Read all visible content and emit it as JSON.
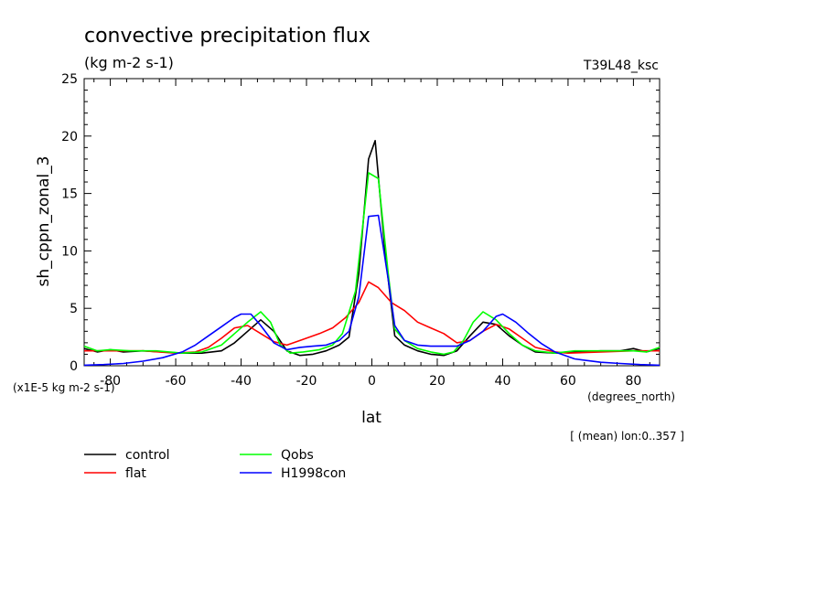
{
  "chart_data": {
    "type": "line",
    "title": "convective precipitation flux",
    "subtitle": "(kg m-2 s-1)",
    "run_label": "T39L48_ksc",
    "ylabel": "sh_cppn_zonal_3",
    "xlabel": "lat",
    "xunits": "(degrees_north)",
    "yunits": "(x1E-5 kg m-2 s-1)",
    "note": "[ (mean) lon:0..357 ]",
    "xlim": [
      -88,
      88
    ],
    "ylim": [
      0,
      25
    ],
    "xticks": [
      "-80",
      "-60",
      "-40",
      "-20",
      "0",
      "20",
      "40",
      "60",
      "80"
    ],
    "yticks": [
      "0",
      "5",
      "10",
      "15",
      "20",
      "25"
    ],
    "grid": false,
    "legend_position": "bottom-left",
    "series": [
      {
        "name": "control",
        "color": "#000000",
        "points": [
          [
            -88,
            1.5
          ],
          [
            -84,
            1.2
          ],
          [
            -80,
            1.4
          ],
          [
            -76,
            1.2
          ],
          [
            -70,
            1.3
          ],
          [
            -64,
            1.2
          ],
          [
            -58,
            1.1
          ],
          [
            -52,
            1.1
          ],
          [
            -46,
            1.3
          ],
          [
            -42,
            2.0
          ],
          [
            -38,
            3.0
          ],
          [
            -34,
            4.0
          ],
          [
            -30,
            3.0
          ],
          [
            -26,
            1.3
          ],
          [
            -22,
            0.9
          ],
          [
            -18,
            1.0
          ],
          [
            -14,
            1.3
          ],
          [
            -10,
            1.8
          ],
          [
            -7,
            2.5
          ],
          [
            -4,
            8.0
          ],
          [
            -1,
            18.0
          ],
          [
            1,
            19.6
          ],
          [
            4,
            10.0
          ],
          [
            7,
            2.6
          ],
          [
            10,
            1.8
          ],
          [
            14,
            1.3
          ],
          [
            18,
            1.0
          ],
          [
            22,
            0.9
          ],
          [
            26,
            1.3
          ],
          [
            30,
            2.6
          ],
          [
            34,
            3.8
          ],
          [
            38,
            3.6
          ],
          [
            42,
            2.6
          ],
          [
            46,
            1.8
          ],
          [
            50,
            1.2
          ],
          [
            56,
            1.1
          ],
          [
            62,
            1.2
          ],
          [
            70,
            1.3
          ],
          [
            76,
            1.3
          ],
          [
            80,
            1.5
          ],
          [
            84,
            1.2
          ],
          [
            88,
            1.5
          ]
        ]
      },
      {
        "name": "flat",
        "color": "#ff0000",
        "points": [
          [
            -88,
            1.3
          ],
          [
            -80,
            1.3
          ],
          [
            -70,
            1.3
          ],
          [
            -60,
            1.1
          ],
          [
            -54,
            1.2
          ],
          [
            -50,
            1.6
          ],
          [
            -46,
            2.4
          ],
          [
            -42,
            3.3
          ],
          [
            -38,
            3.5
          ],
          [
            -34,
            2.8
          ],
          [
            -30,
            2.1
          ],
          [
            -26,
            1.8
          ],
          [
            -22,
            2.2
          ],
          [
            -16,
            2.8
          ],
          [
            -12,
            3.3
          ],
          [
            -8,
            4.2
          ],
          [
            -4,
            5.5
          ],
          [
            -1,
            7.3
          ],
          [
            2,
            6.8
          ],
          [
            6,
            5.5
          ],
          [
            10,
            4.8
          ],
          [
            14,
            3.8
          ],
          [
            18,
            3.3
          ],
          [
            22,
            2.8
          ],
          [
            26,
            2.0
          ],
          [
            30,
            2.2
          ],
          [
            34,
            3.0
          ],
          [
            38,
            3.6
          ],
          [
            42,
            3.2
          ],
          [
            46,
            2.4
          ],
          [
            50,
            1.6
          ],
          [
            56,
            1.2
          ],
          [
            60,
            1.1
          ],
          [
            70,
            1.2
          ],
          [
            80,
            1.3
          ],
          [
            88,
            1.3
          ]
        ]
      },
      {
        "name": "Qobs",
        "color": "#00ff00",
        "points": [
          [
            -88,
            1.7
          ],
          [
            -84,
            1.3
          ],
          [
            -80,
            1.4
          ],
          [
            -74,
            1.3
          ],
          [
            -66,
            1.3
          ],
          [
            -58,
            1.1
          ],
          [
            -52,
            1.2
          ],
          [
            -46,
            1.8
          ],
          [
            -42,
            2.8
          ],
          [
            -38,
            3.8
          ],
          [
            -34,
            4.7
          ],
          [
            -31,
            3.8
          ],
          [
            -28,
            1.8
          ],
          [
            -25,
            1.1
          ],
          [
            -21,
            1.2
          ],
          [
            -16,
            1.4
          ],
          [
            -12,
            1.8
          ],
          [
            -9,
            2.8
          ],
          [
            -5,
            6.5
          ],
          [
            -1,
            16.8
          ],
          [
            2,
            16.3
          ],
          [
            5,
            8.0
          ],
          [
            7,
            3.2
          ],
          [
            10,
            2.2
          ],
          [
            14,
            1.5
          ],
          [
            18,
            1.2
          ],
          [
            22,
            1.0
          ],
          [
            25,
            1.2
          ],
          [
            28,
            2.2
          ],
          [
            31,
            3.8
          ],
          [
            34,
            4.7
          ],
          [
            38,
            4.0
          ],
          [
            42,
            2.8
          ],
          [
            46,
            1.8
          ],
          [
            50,
            1.3
          ],
          [
            56,
            1.1
          ],
          [
            62,
            1.3
          ],
          [
            70,
            1.3
          ],
          [
            80,
            1.3
          ],
          [
            84,
            1.2
          ],
          [
            88,
            1.6
          ]
        ]
      },
      {
        "name": "H1998con",
        "color": "#0000ff",
        "points": [
          [
            -88,
            0.05
          ],
          [
            -82,
            0.1
          ],
          [
            -76,
            0.2
          ],
          [
            -70,
            0.4
          ],
          [
            -64,
            0.7
          ],
          [
            -58,
            1.2
          ],
          [
            -54,
            1.8
          ],
          [
            -50,
            2.6
          ],
          [
            -46,
            3.4
          ],
          [
            -42,
            4.2
          ],
          [
            -40,
            4.5
          ],
          [
            -37,
            4.5
          ],
          [
            -34,
            3.5
          ],
          [
            -30,
            2.0
          ],
          [
            -26,
            1.4
          ],
          [
            -22,
            1.6
          ],
          [
            -18,
            1.7
          ],
          [
            -14,
            1.8
          ],
          [
            -10,
            2.2
          ],
          [
            -7,
            3.0
          ],
          [
            -4,
            6.0
          ],
          [
            -1,
            13.0
          ],
          [
            2,
            13.1
          ],
          [
            5,
            7.5
          ],
          [
            7,
            3.5
          ],
          [
            10,
            2.2
          ],
          [
            14,
            1.8
          ],
          [
            18,
            1.7
          ],
          [
            22,
            1.7
          ],
          [
            26,
            1.7
          ],
          [
            30,
            2.2
          ],
          [
            34,
            3.0
          ],
          [
            38,
            4.3
          ],
          [
            40,
            4.5
          ],
          [
            44,
            3.8
          ],
          [
            48,
            2.8
          ],
          [
            52,
            1.9
          ],
          [
            56,
            1.2
          ],
          [
            62,
            0.6
          ],
          [
            70,
            0.3
          ],
          [
            76,
            0.2
          ],
          [
            82,
            0.1
          ],
          [
            88,
            0.05
          ]
        ]
      }
    ]
  }
}
